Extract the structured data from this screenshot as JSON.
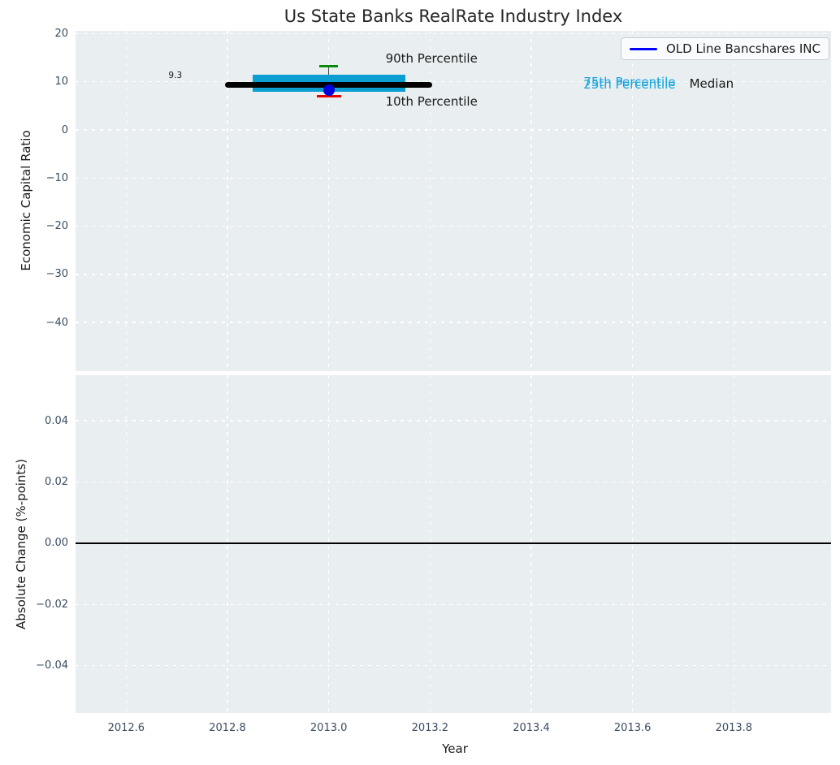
{
  "title": "Us State Banks RealRate Industry Index",
  "legend": {
    "label": "OLD Line Bancshares INC",
    "line_color": "#0000ff"
  },
  "colors": {
    "plot_background": "#e9eef1",
    "grid": "#ffffff",
    "tick_label": "#3b4d61",
    "title_text": "#262626",
    "axis_label": "#1a1a1a",
    "box_fill": "#0a9ed2",
    "median_line": "#000000",
    "whisker": "#4d4d4d",
    "p90_cap": "#0a8a0a",
    "p10_cap": "#e80000",
    "company_point": "#0000dd",
    "percentile_text": "#18a5dc",
    "zero_line": "#000000"
  },
  "chart_data": [
    {
      "type": "boxplot",
      "subplot": "top",
      "title": "Us State Banks RealRate Industry Index",
      "ylabel": "Economic Capital Ratio",
      "xlabel": "",
      "xlim": [
        2012.5,
        2013.992
      ],
      "ylim": [
        -50.1,
        20.6
      ],
      "grid": true,
      "show_x_tick_labels": false,
      "xticks": {
        "values": [
          2012.6,
          2012.8,
          2013.0,
          2013.2,
          2013.4,
          2013.6,
          2013.8
        ],
        "labels": [
          "2012.6",
          "2012.8",
          "2013.0",
          "2013.2",
          "2013.4",
          "2013.6",
          "2013.8"
        ]
      },
      "yticks": {
        "values": [
          20,
          10,
          0,
          -10,
          -20,
          -30,
          -40
        ],
        "labels": [
          "20",
          "10",
          "0",
          "−10",
          "−20",
          "−30",
          "−40"
        ]
      },
      "industry_box": {
        "year": 2013.0,
        "p90": 13.3,
        "p75": 11.5,
        "median": 9.3,
        "p25": 8.0,
        "p10": 7.0,
        "box_half_width": 0.151,
        "median_half_width": 0.205,
        "cap_half_width": 0.018,
        "p10_cap_half_width": 0.024
      },
      "company_series": {
        "name": "OLD Line Bancshares INC",
        "points": [
          {
            "x": 2013.0,
            "y": 8.3
          }
        ]
      },
      "annotations": [
        {
          "text": "9.3",
          "year": 2012.697,
          "value": 11.3,
          "style": "value-label"
        },
        {
          "text": "90th Percentile",
          "year": 2013.203,
          "value": 14.9,
          "style": "plain"
        },
        {
          "text": "10th Percentile",
          "year": 2013.203,
          "value": 5.9,
          "style": "plain"
        },
        {
          "text": "75th Percentile",
          "year": 2013.594,
          "value": 10.0,
          "style": "cyan"
        },
        {
          "text": "25th Percentile",
          "year": 2013.594,
          "value": 9.4,
          "style": "cyan"
        },
        {
          "text": "Median",
          "year": 2013.756,
          "value": 9.55,
          "style": "plain"
        }
      ]
    },
    {
      "type": "line",
      "subplot": "bottom",
      "title": "",
      "ylabel": "Absolute Change (%-points)",
      "xlabel": "Year",
      "xlim": [
        2012.5,
        2013.992
      ],
      "ylim": [
        -0.0555,
        0.0549
      ],
      "grid": true,
      "show_x_tick_labels": true,
      "xticks": {
        "values": [
          2012.6,
          2012.8,
          2013.0,
          2013.2,
          2013.4,
          2013.6,
          2013.8
        ],
        "labels": [
          "2012.6",
          "2012.8",
          "2013.0",
          "2013.2",
          "2013.4",
          "2013.6",
          "2013.8"
        ]
      },
      "yticks": {
        "values": [
          0.04,
          0.02,
          0.0,
          -0.02,
          -0.04
        ],
        "labels": [
          "0.04",
          "0.02",
          "0.00",
          "−0.02",
          "−0.04"
        ]
      },
      "zero_line": 0.0,
      "series": []
    }
  ]
}
